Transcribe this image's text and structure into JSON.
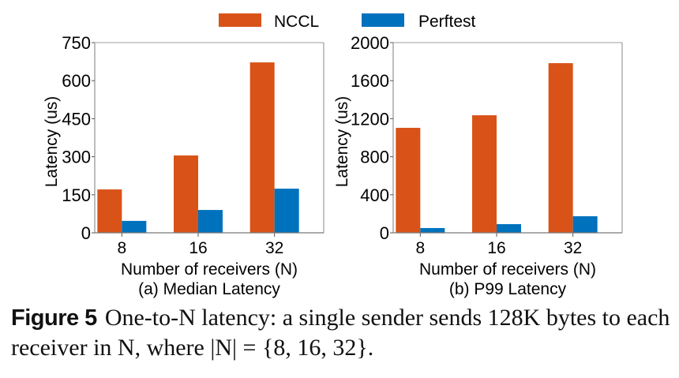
{
  "legend": {
    "items": [
      {
        "name": "NCCL",
        "color": "#d95319"
      },
      {
        "name": "Perftest",
        "color": "#0072bd"
      }
    ],
    "placement": "top-center"
  },
  "chart_data": [
    {
      "type": "bar",
      "title": "(a) Median Latency",
      "xlabel": "Number of receivers (N)",
      "ylabel": "Latency (us)",
      "categories": [
        "8",
        "16",
        "32"
      ],
      "ylim": [
        0,
        750
      ],
      "yticks": [
        0,
        150,
        300,
        450,
        600,
        750
      ],
      "grid": false,
      "series": [
        {
          "name": "NCCL",
          "color": "#d95319",
          "values": [
            171,
            305,
            672
          ]
        },
        {
          "name": "Perftest",
          "color": "#0072bd",
          "values": [
            47,
            90,
            174
          ]
        }
      ]
    },
    {
      "type": "bar",
      "title": "(b) P99 Latency",
      "xlabel": "Number of receivers (N)",
      "ylabel": "Latency (us)",
      "categories": [
        "8",
        "16",
        "32"
      ],
      "ylim": [
        0,
        2000
      ],
      "yticks": [
        0,
        400,
        800,
        1200,
        1600,
        2000
      ],
      "grid": false,
      "series": [
        {
          "name": "NCCL",
          "color": "#d95319",
          "values": [
            1104,
            1236,
            1784
          ]
        },
        {
          "name": "Perftest",
          "color": "#0072bd",
          "values": [
            50,
            91,
            174
          ]
        }
      ]
    }
  ],
  "caption": {
    "label": "Figure 5",
    "text": "One-to-N latency: a single sender sends 128K bytes to each receiver in N, where |N| = {8, 16, 32}."
  }
}
